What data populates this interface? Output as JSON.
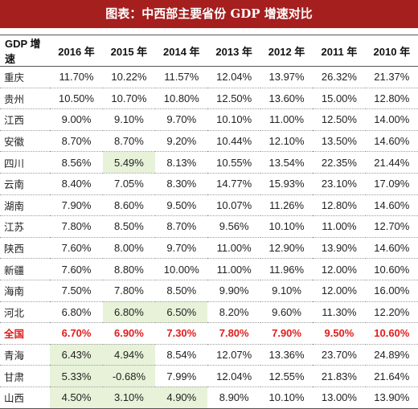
{
  "title": "图表：中西部主要省份 GDP 增速对比",
  "columns": [
    "GDP 增速",
    "2016 年",
    "2015 年",
    "2014 年",
    "2013 年",
    "2012 年",
    "2011 年",
    "2010 年"
  ],
  "rows": [
    {
      "region": "重庆",
      "values": [
        "11.70%",
        "10.22%",
        "11.57%",
        "12.04%",
        "13.97%",
        "26.32%",
        "21.37%"
      ],
      "highlight": []
    },
    {
      "region": "贵州",
      "values": [
        "10.50%",
        "10.70%",
        "10.80%",
        "12.50%",
        "13.60%",
        "15.00%",
        "12.80%"
      ],
      "highlight": []
    },
    {
      "region": "江西",
      "values": [
        "9.00%",
        "9.10%",
        "9.70%",
        "10.10%",
        "11.00%",
        "12.50%",
        "14.00%"
      ],
      "highlight": []
    },
    {
      "region": "安徽",
      "values": [
        "8.70%",
        "8.70%",
        "9.20%",
        "10.44%",
        "12.10%",
        "13.50%",
        "14.60%"
      ],
      "highlight": []
    },
    {
      "region": "四川",
      "values": [
        "8.56%",
        "5.49%",
        "8.13%",
        "10.55%",
        "13.54%",
        "22.35%",
        "21.44%"
      ],
      "highlight": [
        1
      ]
    },
    {
      "region": "云南",
      "values": [
        "8.40%",
        "7.05%",
        "8.30%",
        "14.77%",
        "15.93%",
        "23.10%",
        "17.09%"
      ],
      "highlight": []
    },
    {
      "region": "湖南",
      "values": [
        "7.90%",
        "8.60%",
        "9.50%",
        "10.07%",
        "11.26%",
        "12.80%",
        "14.60%"
      ],
      "highlight": []
    },
    {
      "region": "江苏",
      "values": [
        "7.80%",
        "8.50%",
        "8.70%",
        "9.56%",
        "10.10%",
        "11.00%",
        "12.70%"
      ],
      "highlight": []
    },
    {
      "region": "陕西",
      "values": [
        "7.60%",
        "8.00%",
        "9.70%",
        "11.00%",
        "12.90%",
        "13.90%",
        "14.60%"
      ],
      "highlight": []
    },
    {
      "region": "新疆",
      "values": [
        "7.60%",
        "8.80%",
        "10.00%",
        "11.00%",
        "11.96%",
        "12.00%",
        "10.60%"
      ],
      "highlight": []
    },
    {
      "region": "海南",
      "values": [
        "7.50%",
        "7.80%",
        "8.50%",
        "9.90%",
        "9.10%",
        "12.00%",
        "16.00%"
      ],
      "highlight": []
    },
    {
      "region": "河北",
      "values": [
        "6.80%",
        "6.80%",
        "6.50%",
        "8.20%",
        "9.60%",
        "11.30%",
        "12.20%"
      ],
      "highlight": [
        1,
        2
      ]
    },
    {
      "region": "全国",
      "values": [
        "6.70%",
        "6.90%",
        "7.30%",
        "7.80%",
        "7.90%",
        "9.50%",
        "10.60%"
      ],
      "highlight": [],
      "national": true
    },
    {
      "region": "青海",
      "values": [
        "6.43%",
        "4.94%",
        "8.54%",
        "12.07%",
        "13.36%",
        "23.70%",
        "24.89%"
      ],
      "highlight": [
        0,
        1
      ]
    },
    {
      "region": "甘肃",
      "values": [
        "5.33%",
        "-0.68%",
        "7.99%",
        "12.04%",
        "12.55%",
        "21.83%",
        "21.64%"
      ],
      "highlight": [
        0,
        1
      ]
    },
    {
      "region": "山西",
      "values": [
        "4.50%",
        "3.10%",
        "4.90%",
        "8.90%",
        "10.10%",
        "13.00%",
        "13.90%"
      ],
      "highlight": [
        0,
        1,
        2
      ]
    }
  ],
  "colors": {
    "title_bg": "#a51f1f",
    "highlight_bg": "#e7f2d9",
    "national_text": "#e31c1c"
  }
}
